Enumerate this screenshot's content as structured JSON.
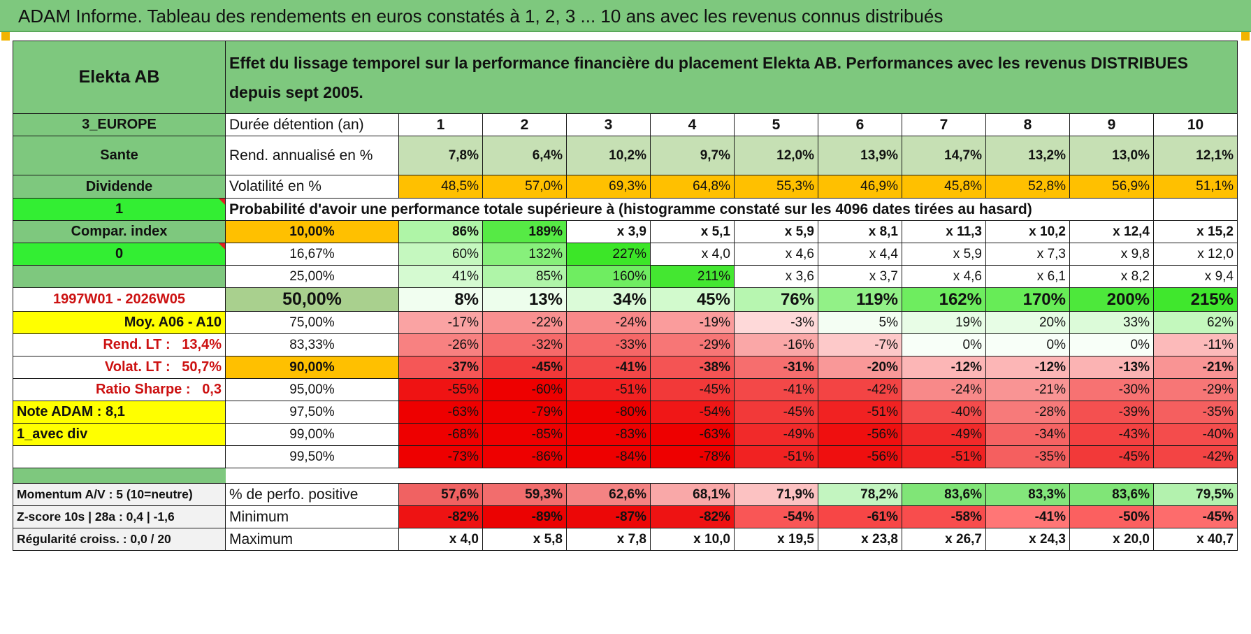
{
  "header": {
    "banner": "ADAM Informe. Tableau des rendements en euros constatés à 1, 2, 3 ... 10 ans avec les revenus connus distribués",
    "name": "Elekta AB",
    "subtitle": "Effet du lissage temporel sur la performance financière du placement Elekta AB. Performances avec les revenus DISTRIBUES depuis sept 2005."
  },
  "left": {
    "region": "3_EUROPE",
    "sector": "Sante",
    "type": "Dividende",
    "flag1": "1",
    "compar": "Compar. index",
    "flag0": "0",
    "blank": "",
    "period": "1997W01 - 2026W05",
    "moy": "Moy. A06 - A10",
    "rend_lt_label": "Rend. LT :",
    "rend_lt_value": "13,4%",
    "volat_lt_label": "Volat. LT :",
    "volat_lt_value": "50,7%",
    "sharpe_label": "Ratio Sharpe :",
    "sharpe_value": "0,3",
    "note": "Note ADAM : 8,1",
    "avec_div": "1_avec div",
    "momentum": "Momentum A/V : 5 (10=neutre)",
    "zscore": "Z-score 10s | 28a : 0,4 | -1,6",
    "regularite": "Régularité croiss. : 0,0 / 20"
  },
  "labels": {
    "duree": "Durée détention (an)",
    "rend": "Rend. annualisé en %",
    "vol": "Volatilité en %",
    "prob": "Probabilité d'avoir une performance totale supérieure à (histogramme constaté sur les 4096 dates tirées au hasard)",
    "perfo_pos": "% de perfo. positive",
    "minimum": "Minimum",
    "maximum": "Maximum"
  },
  "years": [
    "1",
    "2",
    "3",
    "4",
    "5",
    "6",
    "7",
    "8",
    "9",
    "10"
  ],
  "rend": [
    "7,8%",
    "6,4%",
    "10,2%",
    "9,7%",
    "12,0%",
    "13,9%",
    "14,7%",
    "13,2%",
    "13,0%",
    "12,1%"
  ],
  "vol": [
    "48,5%",
    "57,0%",
    "69,3%",
    "64,8%",
    "55,3%",
    "46,9%",
    "45,8%",
    "52,8%",
    "56,9%",
    "51,1%"
  ],
  "prob_rows": [
    {
      "p": "10,00%",
      "v": [
        "86%",
        "189%",
        "x 3,9",
        "x 5,1",
        "x 5,9",
        "x 8,1",
        "x 11,3",
        "x 10,2",
        "x 12,4",
        "x 15,2"
      ]
    },
    {
      "p": "16,67%",
      "v": [
        "60%",
        "132%",
        "227%",
        "x 4,0",
        "x 4,6",
        "x 4,4",
        "x 5,9",
        "x 7,3",
        "x 9,8",
        "x 12,0"
      ]
    },
    {
      "p": "25,00%",
      "v": [
        "41%",
        "85%",
        "160%",
        "211%",
        "x 3,6",
        "x 3,7",
        "x 4,6",
        "x 6,1",
        "x 8,2",
        "x 9,4"
      ]
    },
    {
      "p": "50,00%",
      "v": [
        "8%",
        "13%",
        "34%",
        "45%",
        "76%",
        "119%",
        "162%",
        "170%",
        "200%",
        "215%"
      ]
    },
    {
      "p": "75,00%",
      "v": [
        "-17%",
        "-22%",
        "-24%",
        "-19%",
        "-3%",
        "5%",
        "19%",
        "20%",
        "33%",
        "62%"
      ]
    },
    {
      "p": "83,33%",
      "v": [
        "-26%",
        "-32%",
        "-33%",
        "-29%",
        "-16%",
        "-7%",
        "0%",
        "0%",
        "0%",
        "-11%"
      ]
    },
    {
      "p": "90,00%",
      "v": [
        "-37%",
        "-45%",
        "-41%",
        "-38%",
        "-31%",
        "-20%",
        "-12%",
        "-12%",
        "-13%",
        "-21%"
      ]
    },
    {
      "p": "95,00%",
      "v": [
        "-55%",
        "-60%",
        "-51%",
        "-45%",
        "-41%",
        "-42%",
        "-24%",
        "-21%",
        "-30%",
        "-29%"
      ]
    },
    {
      "p": "97,50%",
      "v": [
        "-63%",
        "-79%",
        "-80%",
        "-54%",
        "-45%",
        "-51%",
        "-40%",
        "-28%",
        "-39%",
        "-35%"
      ]
    },
    {
      "p": "99,00%",
      "v": [
        "-68%",
        "-85%",
        "-83%",
        "-63%",
        "-49%",
        "-56%",
        "-49%",
        "-34%",
        "-43%",
        "-40%"
      ]
    },
    {
      "p": "99,50%",
      "v": [
        "-73%",
        "-86%",
        "-84%",
        "-78%",
        "-51%",
        "-56%",
        "-51%",
        "-35%",
        "-45%",
        "-42%"
      ]
    }
  ],
  "perfo_pos": [
    "57,6%",
    "59,3%",
    "62,6%",
    "68,1%",
    "71,9%",
    "78,2%",
    "83,6%",
    "83,3%",
    "83,6%",
    "79,5%"
  ],
  "minimum": [
    "-82%",
    "-89%",
    "-87%",
    "-82%",
    "-54%",
    "-61%",
    "-58%",
    "-41%",
    "-50%",
    "-45%"
  ],
  "maximum": [
    "x 4,0",
    "x 5,8",
    "x 7,8",
    "x 10,0",
    "x 19,5",
    "x 23,8",
    "x 26,7",
    "x 24,3",
    "x 20,0",
    "x 40,7"
  ],
  "colors": {
    "header_green": "#7ec87e",
    "bright_green": "#33ee33",
    "yellow": "#ffff00",
    "orange": "#ffc000",
    "label_red": "#cc1111"
  }
}
